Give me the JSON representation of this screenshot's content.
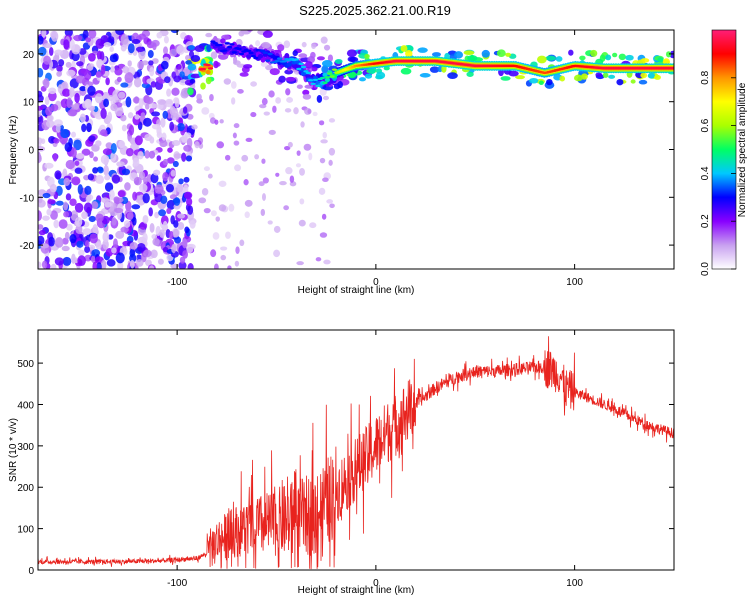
{
  "title": "S225.2025.362.21.00.R19",
  "chart_data": [
    {
      "type": "heatmap",
      "xlabel": "Height of straight line (km)",
      "ylabel": "Frequency (Hz)",
      "xlim": [
        -170,
        150
      ],
      "ylim": [
        -25,
        25
      ],
      "xticks": [
        -100,
        0,
        100
      ],
      "yticks": [
        -20,
        -10,
        0,
        10,
        20
      ],
      "colorbar": {
        "label": "Normalized spectral amplitude",
        "range": [
          0,
          1
        ],
        "ticks": [
          0.0,
          0.2,
          0.4,
          0.6,
          0.8
        ],
        "tick_labels": [
          "0.0",
          "0.2",
          "0.4",
          "0.6",
          "0.8"
        ],
        "colors": [
          "#ffffff",
          "#c8a0f0",
          "#8800ff",
          "#0000ff",
          "#00c8ff",
          "#00ff64",
          "#aaff00",
          "#ffff00",
          "#ff9600",
          "#ff0000",
          "#ff1e78"
        ]
      },
      "ridge": [
        {
          "x": -82,
          "f": 22,
          "a": 0.3
        },
        {
          "x": -60,
          "f": 20,
          "a": 0.3
        },
        {
          "x": -40,
          "f": 18,
          "a": 0.4
        },
        {
          "x": -30,
          "f": 14,
          "a": 0.4
        },
        {
          "x": -20,
          "f": 16,
          "a": 0.6
        },
        {
          "x": -10,
          "f": 17.5,
          "a": 0.8
        },
        {
          "x": 0,
          "f": 18,
          "a": 0.9
        },
        {
          "x": 10,
          "f": 18.5,
          "a": 0.95
        },
        {
          "x": 30,
          "f": 18.5,
          "a": 0.95
        },
        {
          "x": 50,
          "f": 17.5,
          "a": 0.95
        },
        {
          "x": 70,
          "f": 17.5,
          "a": 0.9
        },
        {
          "x": 85,
          "f": 16,
          "a": 0.85
        },
        {
          "x": 100,
          "f": 17.5,
          "a": 0.9
        },
        {
          "x": 115,
          "f": 17,
          "a": 0.95
        },
        {
          "x": 150,
          "f": 17,
          "a": 0.95
        }
      ],
      "noise_region": {
        "x_range": [
          -170,
          -92
        ],
        "f_range": [
          -25,
          25
        ],
        "a_range": [
          0.05,
          0.35
        ]
      }
    },
    {
      "type": "line",
      "xlabel": "Height of straight line (km)",
      "ylabel": "SNR (10 * v/v)",
      "xlim": [
        -170,
        150
      ],
      "ylim": [
        0,
        580
      ],
      "xticks": [
        -100,
        0,
        100
      ],
      "yticks": [
        0,
        100,
        200,
        300,
        400,
        500
      ],
      "color": "#e8231e",
      "series": [
        {
          "name": "SNR",
          "x": [
            -170,
            -150,
            -130,
            -110,
            -100,
            -90,
            -85,
            -80,
            -70,
            -60,
            -50,
            -40,
            -30,
            -25,
            -20,
            -15,
            -10,
            -5,
            0,
            5,
            10,
            15,
            20,
            25,
            30,
            40,
            50,
            60,
            70,
            80,
            85,
            90,
            93,
            95,
            100,
            110,
            120,
            130,
            140,
            150
          ],
          "y": [
            20,
            20,
            20,
            22,
            25,
            28,
            40,
            70,
            95,
            105,
            115,
            125,
            135,
            165,
            190,
            215,
            245,
            270,
            300,
            330,
            350,
            380,
            400,
            420,
            440,
            465,
            480,
            480,
            485,
            490,
            490,
            480,
            470,
            440,
            430,
            410,
            390,
            365,
            345,
            330
          ]
        }
      ]
    }
  ]
}
